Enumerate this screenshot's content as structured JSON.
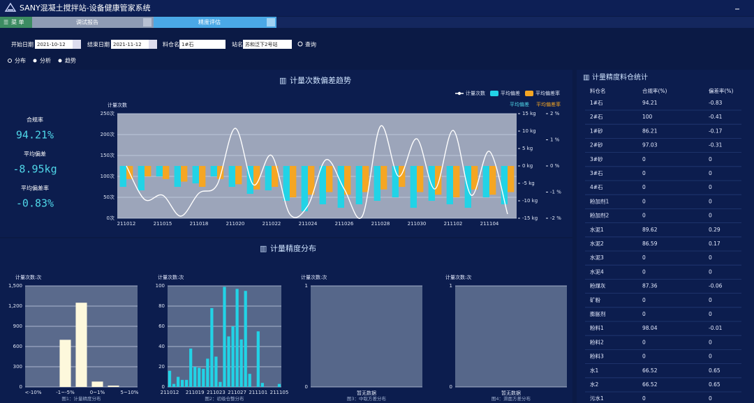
{
  "header": {
    "title": "SANY混凝土搅拌站-设备健康管家系统"
  },
  "menu": "菜 单",
  "tabs": [
    "调试报告",
    "精度评估"
  ],
  "filters": {
    "start_label": "开始日期",
    "start": "2021-10-12",
    "end_label": "结束日期",
    "end": "2021-11-12",
    "bin_label": "料仓名",
    "bin": "1#石",
    "station_label": "站名",
    "station": "苏和泛下2号站",
    "query": "查询"
  },
  "views": [
    "分布",
    "分析",
    "趋势"
  ],
  "stats": [
    {
      "label": "合规率",
      "value": "94.21%"
    },
    {
      "label": "平均偏差",
      "value": "-8.95kg"
    },
    {
      "label": "平均偏差率",
      "value": "-0.83%"
    }
  ],
  "sections": {
    "trend": "计量次数偏差趋势",
    "dist": "计量精度分布"
  },
  "chart_data": [
    {
      "type": "combo",
      "ylabel": "计量次数",
      "y2label": "平均偏差",
      "y3label": "平均偏差率",
      "legend": "top-right",
      "categories": [
        "211012",
        null,
        "211015",
        null,
        "211018",
        null,
        "211020",
        null,
        "211022",
        null,
        "211024",
        null,
        "211026",
        null,
        "211028",
        null,
        "211030",
        null,
        "211102",
        null,
        "211104",
        null
      ],
      "series": [
        {
          "name": "计量次数",
          "kind": "line",
          "color": "#ffffff",
          "values": [
            125,
            45,
            55,
            5,
            60,
            80,
            215,
            80,
            150,
            10,
            30,
            140,
            70,
            5,
            220,
            100,
            190,
            70,
            210,
            55,
            160,
            10
          ]
        },
        {
          "name": "平均偏差",
          "kind": "bar",
          "color": "#22d3e6",
          "axis": "y2",
          "values": [
            -6,
            -7,
            -3,
            -6,
            -5,
            -3,
            -6,
            -8,
            -7,
            -10,
            -13,
            -11,
            -12,
            -11,
            -10,
            -9,
            -12,
            -10,
            -11,
            -12,
            -9,
            -11
          ]
        },
        {
          "name": "平均偏差率",
          "kind": "bar",
          "color": "#f5a623",
          "axis": "y3",
          "values": [
            -0.5,
            -0.4,
            -0.5,
            -0.6,
            -0.8,
            -0.5,
            -0.7,
            -0.9,
            -0.8,
            -1.2,
            -1.1,
            -1.0,
            -1.1,
            -1.0,
            -0.9,
            -0.8,
            -1.0,
            -1.1,
            -1.2,
            -0.9,
            -1.1,
            -1.0
          ]
        }
      ],
      "ylim": [
        0,
        250
      ],
      "yticks": [
        {
          "value": 0,
          "label": "0次"
        },
        {
          "value": 50,
          "label": "50次"
        },
        {
          "value": 100,
          "label": "100次"
        },
        {
          "value": 150,
          "label": "150次"
        },
        {
          "value": 200,
          "label": "200次"
        },
        {
          "value": 250,
          "label": "250次"
        }
      ],
      "y2lim": [
        -15,
        15
      ],
      "y2ticks": [
        {
          "value": -15,
          "label": "-15 kg"
        },
        {
          "value": -10,
          "label": "-10 kg"
        },
        {
          "value": -5,
          "label": "-5 kg"
        },
        {
          "value": 0,
          "label": "0 kg"
        },
        {
          "value": 5,
          "label": "5 kg"
        },
        {
          "value": 10,
          "label": "10 kg"
        },
        {
          "value": 15,
          "label": "15 kg"
        }
      ],
      "y3lim": [
        -2,
        2
      ],
      "y3ticks": [
        {
          "value": -2,
          "label": "-2 %"
        },
        {
          "value": -1,
          "label": "-1 %"
        },
        {
          "value": 0,
          "label": "0 %"
        },
        {
          "value": 1,
          "label": "1 %"
        },
        {
          "value": 2,
          "label": "2 %"
        }
      ],
      "grid": true
    },
    {
      "type": "bar",
      "ylabel": "计量次数:次",
      "caption": "图1：计量精度分布",
      "color": "#fdf8dc",
      "categories": [
        "<-10%",
        null,
        "-1~-5%",
        null,
        "0~1%",
        null,
        "5~10%"
      ],
      "values": [
        0,
        0,
        700,
        1250,
        80,
        20,
        0
      ],
      "ylim": [
        0,
        1500
      ],
      "yticks": [
        0,
        300,
        600,
        900,
        {
          "value": 1200,
          "label": "1,200"
        },
        {
          "value": 1500,
          "label": "1,500"
        }
      ],
      "grid": true
    },
    {
      "type": "bar",
      "ylabel": "计量次数:次",
      "caption": "图2：初级仓整分布",
      "color": "#22d3e6",
      "categories": [
        "211012",
        null,
        null,
        null,
        null,
        null,
        "211019",
        null,
        null,
        null,
        null,
        "211023",
        null,
        null,
        null,
        null,
        "211027",
        null,
        null,
        null,
        null,
        "211101",
        null,
        null,
        null,
        null,
        "211105"
      ],
      "values": [
        16,
        3,
        10,
        7,
        7,
        38,
        20,
        19,
        18,
        28,
        78,
        30,
        5,
        99,
        50,
        60,
        97,
        47,
        95,
        13,
        0,
        55,
        4,
        0,
        0,
        0,
        3
      ],
      "ylim": [
        0,
        100
      ],
      "yticks": [
        0,
        20,
        40,
        60,
        80,
        100
      ],
      "grid": true
    },
    {
      "type": "bar",
      "ylabel": "计量次数:次",
      "caption": "图3：中取方差分布",
      "no_data": "暂无数据",
      "color": "#22d3e6",
      "categories": [],
      "values": [],
      "ylim": [
        0,
        1
      ],
      "yticks": [
        0,
        1
      ],
      "grid": true
    },
    {
      "type": "bar",
      "ylabel": "计量次数:次",
      "caption": "图4：滑面方差分布",
      "no_data": "暂无数据",
      "color": "#22d3e6",
      "categories": [],
      "values": [],
      "ylim": [
        0,
        1
      ],
      "yticks": [
        0,
        1
      ],
      "grid": true
    }
  ],
  "table": {
    "title": "计量精度料仓统计",
    "columns": [
      "料仓名",
      "合规率(%)",
      "偏差率(%)"
    ],
    "rows": [
      [
        "1#石",
        94.21,
        -0.83
      ],
      [
        "2#石",
        100,
        -0.41
      ],
      [
        "1#砂",
        86.21,
        -0.17
      ],
      [
        "2#砂",
        97.03,
        -0.31
      ],
      [
        "3#砂",
        0,
        0
      ],
      [
        "3#石",
        0,
        0
      ],
      [
        "4#石",
        0,
        0
      ],
      [
        "粉加剂1",
        0,
        0
      ],
      [
        "粉加剂2",
        0,
        0
      ],
      [
        "水泥1",
        89.62,
        0.29
      ],
      [
        "水泥2",
        86.59,
        0.17
      ],
      [
        "水泥3",
        0,
        0
      ],
      [
        "水泥4",
        0,
        0
      ],
      [
        "粉煤灰",
        87.36,
        -0.06
      ],
      [
        "矿粉",
        0,
        0
      ],
      [
        "膨胀剂",
        0,
        0
      ],
      [
        "粉料1",
        98.04,
        -0.01
      ],
      [
        "粉料2",
        0,
        0
      ],
      [
        "粉料3",
        0,
        0
      ],
      [
        "水1",
        66.52,
        0.65
      ],
      [
        "水2",
        66.52,
        0.65
      ],
      [
        "污水1",
        0,
        0
      ]
    ]
  }
}
